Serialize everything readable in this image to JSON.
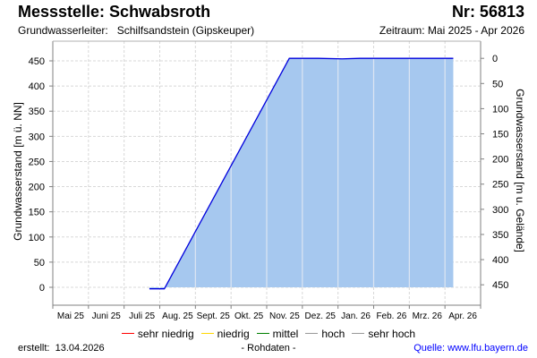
{
  "header": {
    "title": "Messstelle: Schwabsroth",
    "number": "Nr: 56813",
    "aquifer_label": "Grundwasserleiter:",
    "aquifer_value": "Schilfsandstein (Gipskeuper)",
    "period": "Zeitraum: Mai 2025 - Apr 2026"
  },
  "footer": {
    "created_label": "erstellt:",
    "created_date": "13.04.2026",
    "data_type": "- Rohdaten -",
    "source": "Quelle: www.lfu.bayern.de"
  },
  "legend": [
    {
      "label": "sehr niedrig",
      "color": "#ff0000"
    },
    {
      "label": "niedrig",
      "color": "#ffd700"
    },
    {
      "label": "mittel",
      "color": "#008000"
    },
    {
      "label": "hoch",
      "color": "#999999"
    },
    {
      "label": "sehr hoch",
      "color": "#999999"
    }
  ],
  "colors": {
    "line": "#0000dd",
    "fill": "#a6c8ef",
    "grid": "#d8d8d8",
    "axis": "#808080"
  },
  "chart_data": {
    "type": "area",
    "title": "Messstelle: Schwabsroth",
    "xlabel": "",
    "ylabel": "Grundwasserstand [m ü. NN]",
    "ylabel_right": "Grundwasserstand [m u. Gelände]",
    "ylim": [
      -30,
      490
    ],
    "yticks": [
      0,
      50,
      100,
      150,
      200,
      250,
      300,
      350,
      400,
      450
    ],
    "yticks_right": [
      0,
      50,
      100,
      150,
      200,
      250,
      300,
      350,
      400,
      450
    ],
    "categories": [
      "Mai 25",
      "Juni 25",
      "Juli 25",
      "Aug. 25",
      "Sept. 25",
      "Okt. 25",
      "Nov. 25",
      "Dez. 25",
      "Jan. 26",
      "Feb. 26",
      "Mrz. 26",
      "Apr. 26"
    ],
    "grid": true,
    "legend_position": "bottom",
    "series": [
      {
        "name": "Grundwasserstand",
        "points": [
          {
            "date": "2025-07-23",
            "value": -3
          },
          {
            "date": "2025-08-05",
            "value": -3
          },
          {
            "date": "2025-11-20",
            "value": 455
          },
          {
            "date": "2025-12-15",
            "value": 455
          },
          {
            "date": "2026-01-05",
            "value": 454
          },
          {
            "date": "2026-01-20",
            "value": 455
          },
          {
            "date": "2026-02-05",
            "value": 455
          },
          {
            "date": "2026-04-08",
            "value": 455
          }
        ]
      }
    ]
  }
}
